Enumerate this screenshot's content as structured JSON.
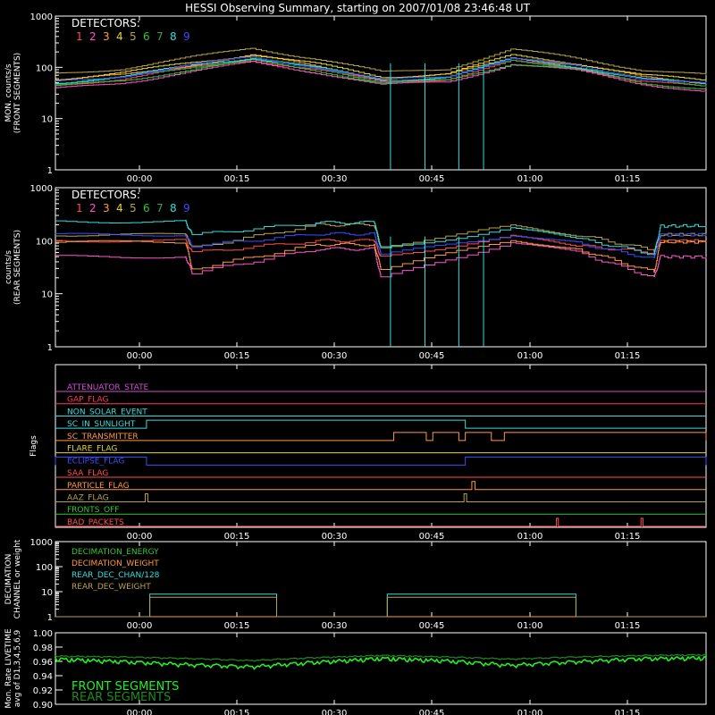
{
  "chart_data": [
    {
      "type": "line",
      "title": "HESSI Observing Summary, starting on 2007/01/08 23:46:48 UT",
      "ylabel": [
        "MON. counts/s",
        "(FRONT SEGMENTS)"
      ],
      "yscale": "log",
      "ylim": [
        1,
        1000
      ],
      "yticks": [
        "1",
        "10",
        "100",
        "1000"
      ],
      "xlim": [
        0,
        100
      ],
      "xunits": "minutes after 23:46:48 UT",
      "xticks": [
        "00:00",
        "00:15",
        "00:30",
        "00:45",
        "01:00",
        "01:15"
      ],
      "legend_title": "DETECTORS:",
      "series": [
        {
          "name": "1",
          "color": "#ff4d4d",
          "x": [
            0,
            10,
            20,
            30,
            40,
            50,
            60,
            70,
            80,
            90,
            100
          ],
          "y": [
            45,
            60,
            95,
            140,
            90,
            50,
            60,
            130,
            95,
            55,
            40
          ]
        },
        {
          "name": "2",
          "color": "#ff55cc",
          "x": [
            0,
            10,
            20,
            30,
            40,
            50,
            60,
            70,
            80,
            90,
            100
          ],
          "y": [
            38,
            50,
            80,
            125,
            80,
            45,
            52,
            115,
            85,
            48,
            33
          ]
        },
        {
          "name": "3",
          "color": "#ff9a3c",
          "x": [
            0,
            10,
            20,
            30,
            40,
            50,
            60,
            70,
            80,
            90,
            100
          ],
          "y": [
            55,
            70,
            110,
            170,
            105,
            60,
            70,
            160,
            110,
            65,
            50
          ]
        },
        {
          "name": "4",
          "color": "#e8d62a",
          "x": [
            0,
            10,
            20,
            30,
            40,
            50,
            60,
            70,
            80,
            90,
            100
          ],
          "y": [
            60,
            78,
            120,
            180,
            115,
            65,
            76,
            170,
            120,
            70,
            55
          ]
        },
        {
          "name": "5",
          "color": "#b8a24a",
          "x": [
            0,
            10,
            20,
            30,
            40,
            50,
            60,
            70,
            80,
            90,
            100
          ],
          "y": [
            75,
            95,
            150,
            240,
            145,
            80,
            95,
            220,
            150,
            90,
            70
          ]
        },
        {
          "name": "6",
          "color": "#35c435",
          "x": [
            0,
            10,
            20,
            30,
            40,
            50,
            60,
            70,
            80,
            90,
            100
          ],
          "y": [
            42,
            55,
            88,
            135,
            88,
            48,
            56,
            120,
            90,
            50,
            38
          ]
        },
        {
          "name": "7",
          "color": "#2ea84f",
          "x": [
            0,
            10,
            20,
            30,
            40,
            50,
            60,
            70,
            80,
            90,
            100
          ],
          "y": [
            48,
            62,
            100,
            150,
            95,
            52,
            62,
            140,
            100,
            58,
            45
          ]
        },
        {
          "name": "8",
          "color": "#33dddd",
          "x": [
            0,
            10,
            20,
            30,
            40,
            50,
            60,
            70,
            80,
            90,
            100
          ],
          "y": [
            50,
            66,
            105,
            155,
            98,
            55,
            66,
            145,
            102,
            60,
            46
          ]
        },
        {
          "name": "9",
          "color": "#3b4dff",
          "x": [
            0,
            10,
            20,
            30,
            40,
            50,
            60,
            70,
            80,
            90,
            100
          ],
          "y": [
            52,
            68,
            108,
            160,
            100,
            56,
            68,
            150,
            105,
            62,
            48
          ]
        }
      ]
    },
    {
      "type": "line",
      "ylabel": [
        "counts/s",
        "(REAR SEGMENTS)"
      ],
      "yscale": "log",
      "ylim": [
        1,
        1000
      ],
      "yticks": [
        "1",
        "10",
        "100",
        "1000"
      ],
      "xlim": [
        0,
        100
      ],
      "xticks": [
        "00:00",
        "00:15",
        "00:30",
        "00:45",
        "01:00",
        "01:15"
      ],
      "legend_title": "DETECTORS:",
      "series": [
        {
          "name": "1",
          "color": "#ff4d4d",
          "x": [
            0,
            20,
            21,
            40,
            49,
            50,
            70,
            80,
            92,
            93,
            100
          ],
          "y": [
            100,
            100,
            60,
            100,
            100,
            50,
            120,
            80,
            60,
            100,
            100
          ]
        },
        {
          "name": "2",
          "color": "#ff55cc",
          "x": [
            0,
            20,
            21,
            40,
            49,
            50,
            70,
            80,
            92,
            93,
            100
          ],
          "y": [
            50,
            50,
            25,
            70,
            70,
            20,
            95,
            60,
            20,
            50,
            50
          ]
        },
        {
          "name": "3",
          "color": "#ff9a3c",
          "x": [
            0,
            20,
            21,
            40,
            49,
            50,
            70,
            80,
            92,
            93,
            100
          ],
          "y": [
            95,
            95,
            30,
            85,
            85,
            30,
            105,
            70,
            25,
            95,
            95
          ]
        },
        {
          "name": "5",
          "color": "#b8a24a",
          "x": [
            0,
            20,
            21,
            40,
            49,
            50,
            70,
            80,
            92,
            93,
            100
          ],
          "y": [
            130,
            130,
            75,
            200,
            200,
            80,
            190,
            130,
            65,
            130,
            130
          ]
        },
        {
          "name": "8",
          "color": "#33dddd",
          "x": [
            0,
            20,
            21,
            40,
            49,
            50,
            70,
            80,
            92,
            93,
            100
          ],
          "y": [
            230,
            230,
            130,
            220,
            220,
            70,
            170,
            110,
            55,
            190,
            190
          ]
        },
        {
          "name": "9",
          "color": "#3b4dff",
          "x": [
            0,
            20,
            21,
            40,
            49,
            50,
            70,
            80,
            92,
            93,
            100
          ],
          "y": [
            130,
            130,
            80,
            135,
            135,
            55,
            130,
            90,
            45,
            130,
            130
          ]
        }
      ]
    },
    {
      "type": "line",
      "ylabel": [
        "Flags"
      ],
      "xlim": [
        0,
        100
      ],
      "xticks": [
        "00:00",
        "00:15",
        "00:30",
        "00:45",
        "01:00",
        "01:15"
      ],
      "flags": [
        {
          "name": "ATTENUATOR_STATE",
          "color": "#d04fd0"
        },
        {
          "name": "GAP_FLAG",
          "color": "#ff3a5a"
        },
        {
          "name": "NON_SOLAR_EVENT",
          "color": "#33dddd"
        },
        {
          "name": "SC_IN_SUNLIGHT",
          "color": "#33dddd",
          "on": [
            [
              14,
              63
            ]
          ]
        },
        {
          "name": "SC_TRANSMITTER",
          "color": "#ff9a3c",
          "on": [
            [
              52,
              57
            ],
            [
              58,
              62
            ],
            [
              63,
              67
            ],
            [
              69,
              100
            ]
          ]
        },
        {
          "name": "FLARE_FLAG",
          "color": "#e8d62a"
        },
        {
          "name": "ECLIPSE_FLAG",
          "color": "#3b4dff",
          "on": [
            [
              0,
              14
            ],
            [
              63,
              100
            ]
          ]
        },
        {
          "name": "SAA_FLAG",
          "color": "#ff4d4d"
        },
        {
          "name": "PARTICLE_FLAG",
          "color": "#ff9a3c",
          "on": [
            [
              64,
              64.5
            ]
          ]
        },
        {
          "name": "AAZ_FLAG",
          "color": "#b8a24a",
          "on": [
            [
              13.8,
              14.2
            ],
            [
              62.8,
              63.2
            ]
          ]
        },
        {
          "name": "FRONTS_OFF",
          "color": "#35c435"
        },
        {
          "name": "BAD_PACKETS",
          "color": "#ff4d4d",
          "on": [
            [
              77,
              77.3
            ],
            [
              90,
              90.3
            ]
          ]
        }
      ]
    },
    {
      "type": "line",
      "ylabel": [
        "DECIMATION",
        "CHANNEL or weight"
      ],
      "yscale": "log",
      "ylim": [
        1,
        1000
      ],
      "yticks": [
        "1",
        "10",
        "100",
        "1000"
      ],
      "xlim": [
        0,
        100
      ],
      "xticks": [
        "00:00",
        "00:15",
        "00:30",
        "00:45",
        "01:00",
        "01:15"
      ],
      "series": [
        {
          "name": "DECIMATION_ENERGY",
          "color": "#35c435",
          "x": [
            0,
            100
          ],
          "y": [
            1,
            1
          ]
        },
        {
          "name": "DECIMATION_WEIGHT",
          "color": "#ff9a3c",
          "x": [
            0,
            100
          ],
          "y": [
            1,
            1
          ]
        },
        {
          "name": "REAR_DEC_CHAN/128",
          "color": "#33dddd",
          "x": [
            0,
            14.5,
            14.5,
            34,
            34,
            51,
            51,
            80,
            80,
            100
          ],
          "y": [
            1,
            1,
            8,
            8,
            1,
            1,
            8,
            8,
            1,
            1
          ]
        },
        {
          "name": "REAR_DEC_WEIGHT",
          "color": "#b8a24a",
          "x": [
            0,
            14.5,
            14.5,
            34,
            34,
            51,
            51,
            80,
            80,
            100
          ],
          "y": [
            1,
            1,
            6,
            6,
            1,
            1,
            6,
            6,
            1,
            1
          ]
        }
      ]
    },
    {
      "type": "line",
      "ylabel": [
        "Mon. Rate LIVETIME",
        "avg of D1,3,4,5,6,9"
      ],
      "ylim": [
        0.9,
        1.0
      ],
      "yticks": [
        "0.90",
        "0.92",
        "0.94",
        "0.96",
        "0.98",
        "1.00"
      ],
      "xlim": [
        0,
        100
      ],
      "xticks": [
        "00:00",
        "00:15",
        "00:30",
        "00:45",
        "01:00",
        "01:15"
      ],
      "series": [
        {
          "name": "FRONT SEGMENTS",
          "color": "#22ee22",
          "x": [
            0,
            10,
            20,
            30,
            40,
            50,
            60,
            70,
            80,
            90,
            100
          ],
          "y": [
            0.965,
            0.962,
            0.958,
            0.955,
            0.961,
            0.966,
            0.963,
            0.957,
            0.962,
            0.966,
            0.967
          ]
        },
        {
          "name": "REAR SEGMENTS",
          "color": "#1f8a1f",
          "x": [
            0,
            10,
            20,
            30,
            40,
            50,
            60,
            70,
            80,
            90,
            100
          ],
          "y": [
            0.968,
            0.967,
            0.965,
            0.962,
            0.966,
            0.969,
            0.967,
            0.964,
            0.967,
            0.969,
            0.97
          ]
        }
      ]
    }
  ]
}
